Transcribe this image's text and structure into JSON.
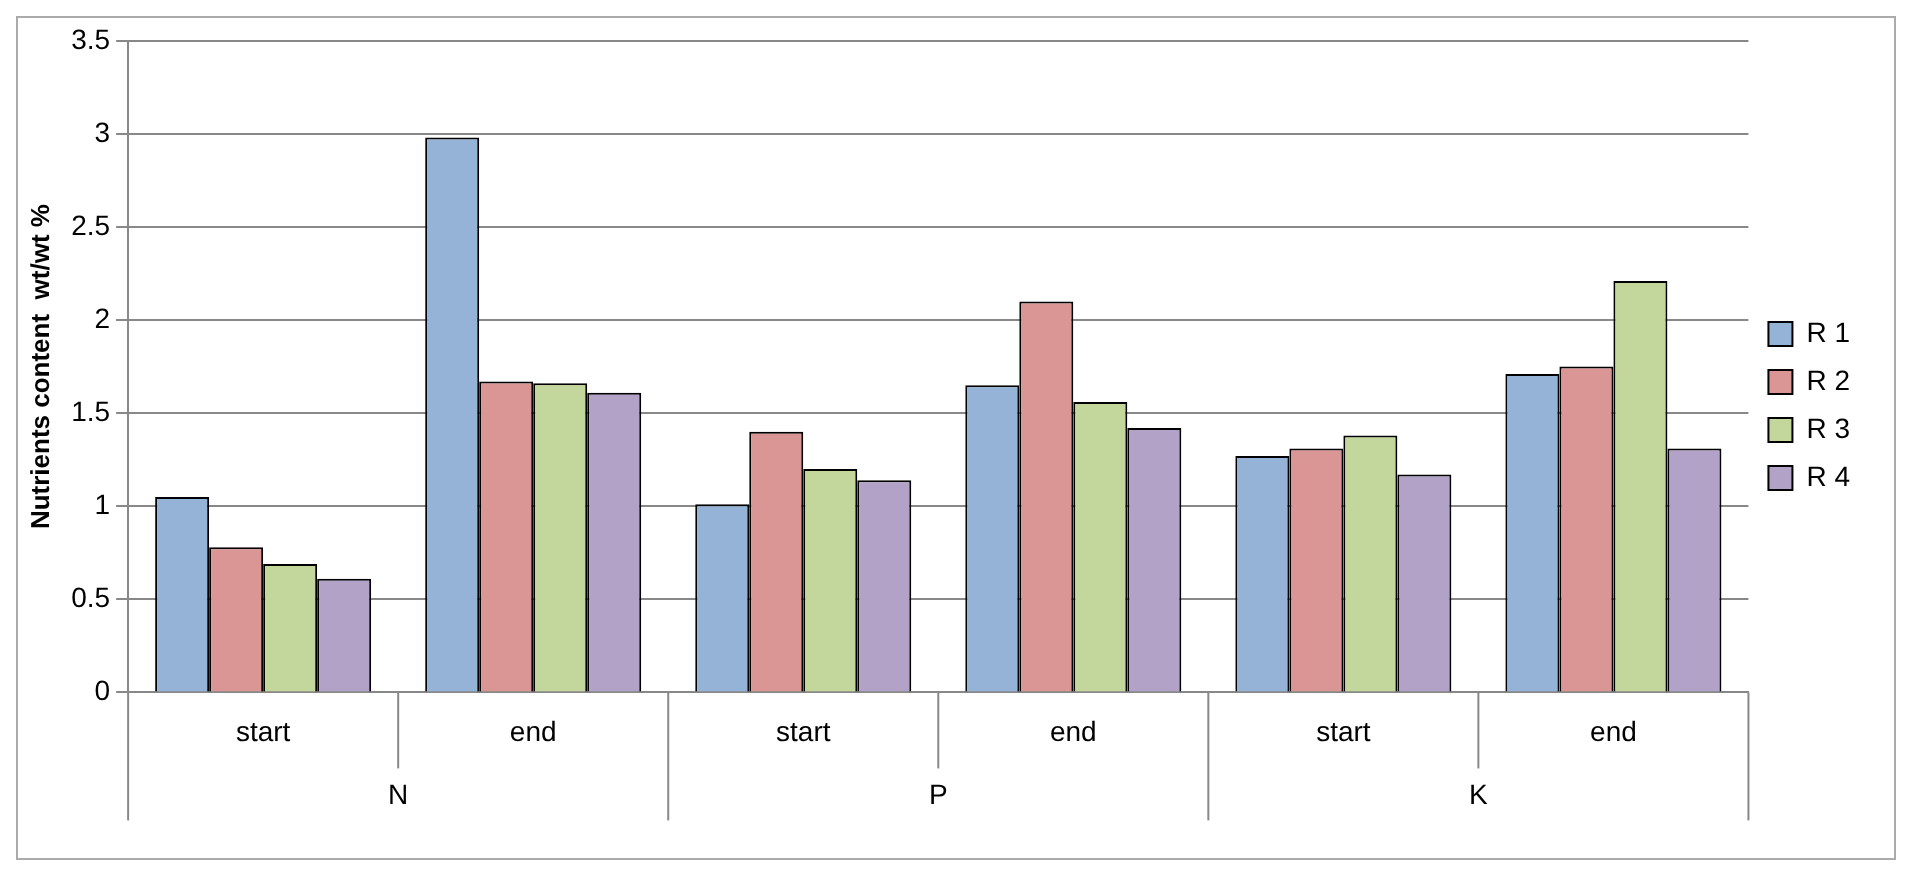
{
  "chart_data": {
    "type": "bar",
    "ylabel": "Nutrients content  wt/wt %",
    "categories": [
      "start",
      "end",
      "start",
      "end",
      "start",
      "end"
    ],
    "annotations": [
      "N",
      "P",
      "K"
    ],
    "series": [
      {
        "name": "R 1",
        "color": "#95b3d7",
        "values": [
          1.05,
          2.98,
          1.01,
          1.65,
          1.27,
          1.71
        ]
      },
      {
        "name": "R 2",
        "color": "#d99694",
        "values": [
          0.78,
          1.67,
          1.4,
          2.1,
          1.31,
          1.75
        ]
      },
      {
        "name": "R 3",
        "color": "#c3d69b",
        "values": [
          0.69,
          1.66,
          1.2,
          1.56,
          1.38,
          2.21
        ]
      },
      {
        "name": "R 4",
        "color": "#b3a2c7",
        "values": [
          0.61,
          1.61,
          1.14,
          1.42,
          1.17,
          1.31
        ]
      }
    ],
    "ylim": [
      0,
      3.5
    ],
    "yticks": [
      0,
      0.5,
      1,
      1.5,
      2,
      2.5,
      3,
      3.5
    ],
    "grid": "y",
    "legend": "right"
  }
}
